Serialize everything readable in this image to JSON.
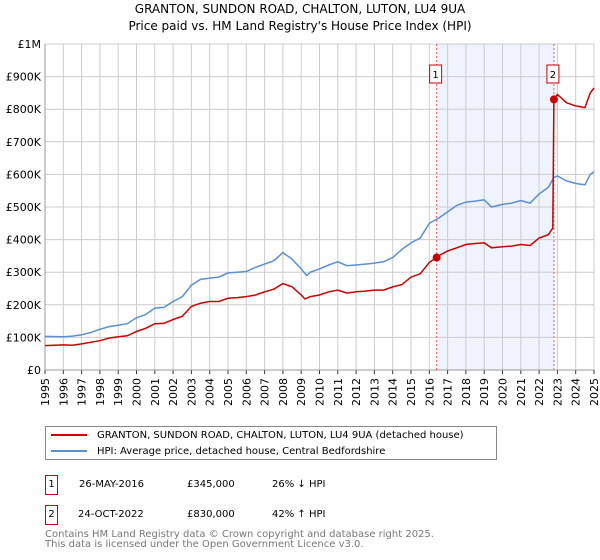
{
  "chart_data": {
    "type": "line",
    "title": "GRANTON, SUNDON ROAD, CHALTON, LUTON, LU4 9UA",
    "subtitle": "Price paid vs. HM Land Registry's House Price Index (HPI)",
    "xlim": [
      1995,
      2025
    ],
    "ylim": [
      0,
      1000000
    ],
    "y_ticks": [
      {
        "v": 0,
        "label": "£0"
      },
      {
        "v": 100000,
        "label": "£100K"
      },
      {
        "v": 200000,
        "label": "£200K"
      },
      {
        "v": 300000,
        "label": "£300K"
      },
      {
        "v": 400000,
        "label": "£400K"
      },
      {
        "v": 500000,
        "label": "£500K"
      },
      {
        "v": 600000,
        "label": "£600K"
      },
      {
        "v": 700000,
        "label": "£700K"
      },
      {
        "v": 800000,
        "label": "£800K"
      },
      {
        "v": 900000,
        "label": "£900K"
      },
      {
        "v": 1000000,
        "label": "£1M"
      }
    ],
    "x_ticks": [
      "1995",
      "1996",
      "1997",
      "1998",
      "1999",
      "2000",
      "2001",
      "2002",
      "2003",
      "2004",
      "2005",
      "2006",
      "2007",
      "2008",
      "2009",
      "2010",
      "2011",
      "2012",
      "2013",
      "2014",
      "2015",
      "2016",
      "2017",
      "2018",
      "2019",
      "2020",
      "2021",
      "2022",
      "2023",
      "2024",
      "2025"
    ],
    "grid": true,
    "series": [
      {
        "name": "GRANTON, SUNDON ROAD, CHALTON, LUTON, LU4 9UA (detached house)",
        "color": "#cc0000",
        "x": [
          1995,
          1996,
          1996.5,
          1997,
          1998,
          1998.5,
          1999,
          1999.5,
          2000,
          2000.5,
          2001,
          2001.5,
          2002,
          2002.5,
          2003,
          2003.5,
          2004,
          2004.5,
          2005,
          2005.5,
          2006,
          2006.5,
          2007,
          2007.5,
          2008,
          2008.5,
          2009,
          2009.2,
          2009.5,
          2010,
          2010.5,
          2011,
          2011.5,
          2012,
          2012.5,
          2013,
          2013.5,
          2014,
          2014.5,
          2015,
          2015.5,
          2016,
          2016.4,
          2016.5,
          2017,
          2017.5,
          2018,
          2018.5,
          2019,
          2019.4,
          2020,
          2020.5,
          2021,
          2021.5,
          2022,
          2022.5,
          2022.75,
          2022.81,
          2023,
          2023.5,
          2024,
          2024.5,
          2024.8,
          2025
        ],
        "y": [
          75000,
          77000,
          76000,
          80000,
          90000,
          98000,
          102000,
          105000,
          118000,
          128000,
          142000,
          143000,
          155000,
          165000,
          195000,
          205000,
          210000,
          210000,
          220000,
          222000,
          225000,
          230000,
          240000,
          248000,
          265000,
          255000,
          230000,
          218000,
          225000,
          230000,
          240000,
          245000,
          236000,
          240000,
          242000,
          245000,
          245000,
          255000,
          262000,
          285000,
          295000,
          330000,
          345000,
          350000,
          365000,
          375000,
          385000,
          388000,
          390000,
          375000,
          378000,
          380000,
          385000,
          382000,
          405000,
          415000,
          435000,
          830000,
          845000,
          820000,
          810000,
          805000,
          850000,
          865000
        ]
      },
      {
        "name": "HPI: Average price, detached house, Central Bedfordshire",
        "color": "#5b8fd4",
        "x": [
          1995,
          1996,
          1996.5,
          1997,
          1997.5,
          1998,
          1998.5,
          1999,
          1999.5,
          2000,
          2000.5,
          2001,
          2001.5,
          2002,
          2002.5,
          2003,
          2003.5,
          2004,
          2004.5,
          2005,
          2005.5,
          2006,
          2006.5,
          2007,
          2007.5,
          2008,
          2008.5,
          2009,
          2009.3,
          2009.5,
          2010,
          2010.5,
          2011,
          2011.5,
          2012,
          2012.5,
          2013,
          2013.5,
          2014,
          2014.5,
          2015,
          2015.5,
          2016,
          2016.5,
          2017,
          2017.5,
          2018,
          2018.5,
          2019,
          2019.4,
          2020,
          2020.5,
          2021,
          2021.5,
          2022,
          2022.5,
          2022.8,
          2023,
          2023.5,
          2024,
          2024.5,
          2024.8,
          2025
        ],
        "y": [
          103000,
          102000,
          104000,
          108000,
          115000,
          125000,
          133000,
          137000,
          142000,
          160000,
          170000,
          190000,
          192000,
          210000,
          225000,
          260000,
          278000,
          282000,
          285000,
          298000,
          300000,
          302000,
          315000,
          325000,
          335000,
          360000,
          340000,
          310000,
          290000,
          300000,
          310000,
          322000,
          332000,
          320000,
          322000,
          325000,
          328000,
          332000,
          345000,
          370000,
          390000,
          405000,
          450000,
          465000,
          485000,
          505000,
          515000,
          518000,
          522000,
          500000,
          508000,
          512000,
          520000,
          512000,
          540000,
          560000,
          590000,
          595000,
          580000,
          572000,
          568000,
          600000,
          608000
        ]
      }
    ],
    "sales": [
      {
        "label": "1",
        "x": 2016.4,
        "price": 345000,
        "date": "26-MAY-2016",
        "price_text": "£345,000",
        "hpi_text": "26% ↓ HPI"
      },
      {
        "label": "2",
        "x": 2022.81,
        "price": 830000,
        "date": "24-OCT-2022",
        "price_text": "£830,000",
        "hpi_text": "42% ↑ HPI"
      }
    ],
    "shaded_range": [
      2016.4,
      2022.81
    ],
    "legend_placement": "bottom"
  },
  "footer": {
    "line1": "Contains HM Land Registry data © Crown copyright and database right 2025.",
    "line2": "This data is licensed under the Open Government Licence v3.0."
  }
}
